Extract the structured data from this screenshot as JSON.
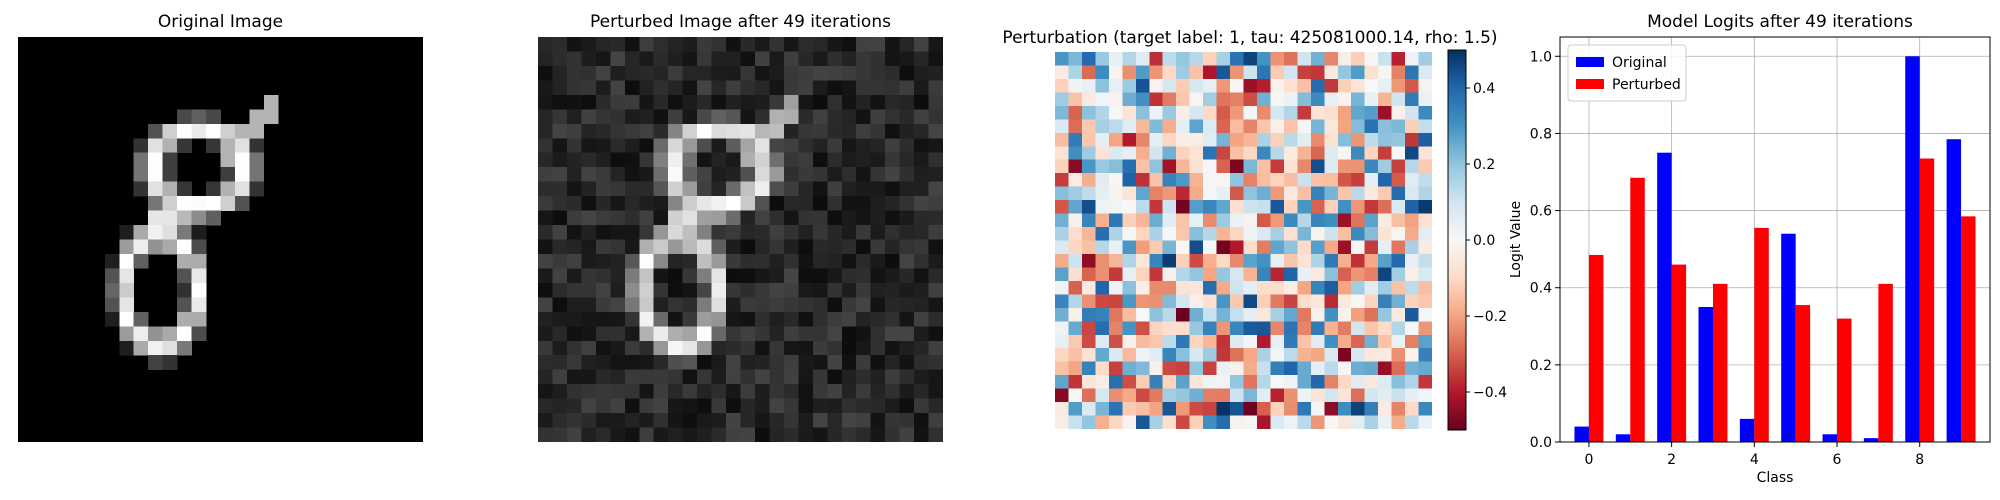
{
  "panels": {
    "original_title": "Original Image",
    "perturbed_title": "Perturbed Image after 49 iterations",
    "perturbation_title": "Perturbation (target label: 1, tau: 425081000.14, rho: 1.5)",
    "logits_title": "Model Logits after 49 iterations"
  },
  "colorbar": {
    "ticks": [
      0.4,
      0.2,
      0.0,
      -0.2,
      -0.4
    ],
    "tick_labels": [
      "0.4",
      "0.2",
      "0.0",
      "−0.2",
      "−0.4"
    ],
    "range": [
      -0.5,
      0.5
    ],
    "colormap": "RdBu",
    "stops": [
      "#67001f",
      "#b2182b",
      "#d6604d",
      "#f4a582",
      "#fddbc7",
      "#f7f7f7",
      "#d1e5f0",
      "#92c5de",
      "#4393c3",
      "#2166ac",
      "#053061"
    ]
  },
  "chart_data": {
    "type": "bar",
    "title": "Model Logits after 49 iterations",
    "xlabel": "Class",
    "ylabel": "Logit Value",
    "categories": [
      0,
      1,
      2,
      3,
      4,
      5,
      6,
      7,
      8,
      9
    ],
    "x_ticks": [
      "0",
      "2",
      "4",
      "6",
      "8"
    ],
    "y_ticks": [
      "0.0",
      "0.2",
      "0.4",
      "0.6",
      "0.8",
      "1.0"
    ],
    "ylim": [
      0,
      1.05
    ],
    "grid": true,
    "legend_position": "top-left",
    "series": [
      {
        "name": "Original",
        "color": "#0000ff",
        "values": [
          0.04,
          0.02,
          0.75,
          0.35,
          0.06,
          0.54,
          0.02,
          0.01,
          1.0,
          0.785
        ]
      },
      {
        "name": "Perturbed",
        "color": "#ff0000",
        "values": [
          0.485,
          0.685,
          0.46,
          0.41,
          0.555,
          0.355,
          0.32,
          0.41,
          0.735,
          0.585
        ]
      }
    ]
  }
}
